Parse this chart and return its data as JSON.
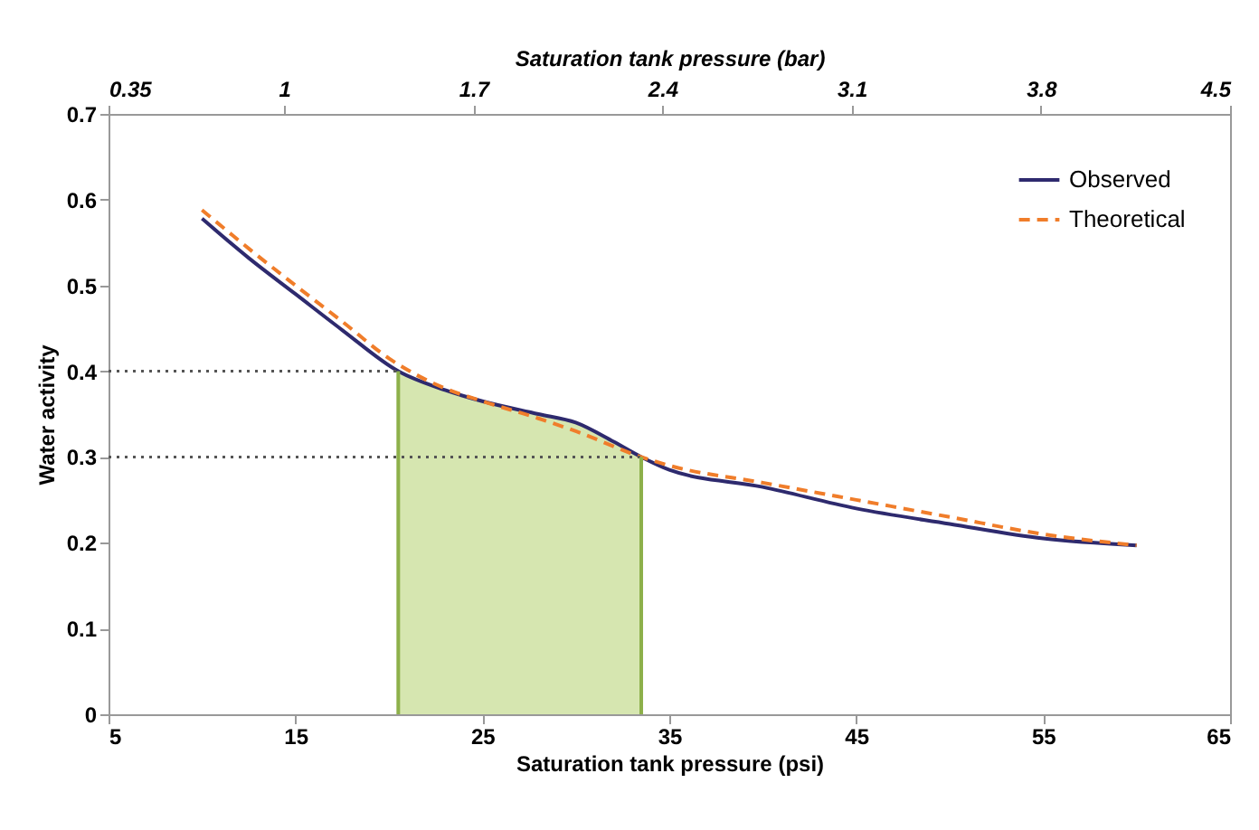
{
  "chart_data": {
    "type": "line",
    "xlabel": "Saturation tank pressure (psi)",
    "x2label": "Saturation tank pressure (bar)",
    "ylabel": "Water activity",
    "xlim": [
      5,
      65
    ],
    "xticks": [
      5,
      15,
      25,
      35,
      45,
      55,
      65
    ],
    "x2lim": [
      0.35,
      4.5
    ],
    "x2ticks": [
      0.35,
      1,
      1.7,
      2.4,
      3.1,
      3.8,
      4.5
    ],
    "ylim": [
      0,
      0.7
    ],
    "yticks": [
      0,
      0.1,
      0.2,
      0.3,
      0.4,
      0.5,
      0.6,
      0.7
    ],
    "legend": "top right",
    "grid": false,
    "series": [
      {
        "type": "area",
        "color": "#d6e6b0",
        "x": [
          20.5,
          23,
          25,
          28,
          30,
          32,
          33.5
        ],
        "values": [
          0.4,
          0.378,
          0.365,
          0.35,
          0.34,
          0.318,
          0.3
        ]
      },
      {
        "name": "Observed",
        "color": "#2e2a6e",
        "line_style": "solid",
        "x": [
          10,
          12.5,
          15,
          17.5,
          20.5,
          23,
          25,
          28,
          30,
          32,
          33.5,
          35,
          40,
          45,
          50,
          55,
          60
        ],
        "values": [
          0.578,
          0.532,
          0.49,
          0.448,
          0.4,
          0.378,
          0.365,
          0.35,
          0.34,
          0.318,
          0.3,
          0.285,
          0.265,
          0.24,
          0.222,
          0.205,
          0.197
        ]
      },
      {
        "name": "Theoretical",
        "color": "#f07d2a",
        "line_style": "dashed",
        "x": [
          10,
          12.5,
          15,
          17.5,
          20,
          23,
          25,
          28,
          30,
          33.5,
          35,
          40,
          45,
          50,
          55,
          60
        ],
        "values": [
          0.588,
          0.543,
          0.5,
          0.458,
          0.415,
          0.38,
          0.365,
          0.345,
          0.33,
          0.3,
          0.29,
          0.27,
          0.25,
          0.23,
          0.21,
          0.197
        ]
      }
    ],
    "ref_lines": [
      {
        "axis": "y",
        "value": 0.4,
        "color": "#555555",
        "line_style": "dotted"
      },
      {
        "axis": "y",
        "value": 0.3,
        "color": "#555555",
        "line_style": "dotted"
      },
      {
        "axis": "x",
        "value": 20.5,
        "color": "#8db04a",
        "line_style": "solid"
      },
      {
        "axis": "x",
        "value": 33.5,
        "color": "#8db04a",
        "line_style": "solid"
      }
    ]
  }
}
